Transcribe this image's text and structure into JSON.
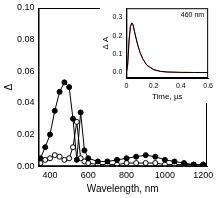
{
  "chart_data": [
    {
      "type": "line",
      "x_label": "Wavelength, nm",
      "y_label": "Δ",
      "x": [
        350,
        375,
        400,
        425,
        450,
        475,
        500,
        520,
        540,
        560,
        580,
        600,
        650,
        700,
        750,
        800,
        850,
        900,
        950,
        1000,
        1050,
        1100,
        1150,
        1200
      ],
      "series": [
        {
          "color": "#000000",
          "marker": "circle",
          "line_style": "solid",
          "values": [
            0.005,
            0.012,
            0.02,
            0.035,
            0.047,
            0.053,
            0.05,
            0.03,
            0.004,
            0.034,
            0.01,
            0.005,
            0.003,
            0.003,
            0.004,
            0.005,
            0.006,
            0.007,
            0.006,
            0.004,
            0.003,
            0.002,
            0.001,
            0.001
          ]
        },
        {
          "color": "#000000",
          "marker": "open_circle",
          "line_style": "solid",
          "values": [
            0.002,
            0.004,
            0.005,
            0.007,
            0.006,
            0.004,
            0.005,
            0.012,
            0.028,
            0.005,
            0.003,
            0.002,
            0.001,
            0.001,
            0.001,
            0.002,
            0.002,
            0.002,
            0.002,
            0.001,
            0.001,
            0.001,
            0.001,
            0.001
          ]
        }
      ],
      "xlim": [
        340,
        1220
      ],
      "xticks": [
        400,
        600,
        800,
        1000,
        1200
      ],
      "ylim": [
        0,
        0.1
      ],
      "yticks": [
        {
          "value": 0,
          "label": "0.00"
        },
        {
          "value": 0.02,
          "label": "0.02"
        },
        {
          "value": 0.04,
          "label": "0.04"
        },
        {
          "value": 0.06,
          "label": "0.06"
        },
        {
          "value": 0.08,
          "label": "0.08"
        },
        {
          "value": 0.1,
          "label": "0.10"
        }
      ],
      "grid": false
    },
    {
      "type": "line",
      "annotation": "460 nm",
      "x_label": "Time, µs",
      "y_label": "Δ A",
      "x": [
        0,
        0.01,
        0.02,
        0.03,
        0.04,
        0.05,
        0.06,
        0.08,
        0.1,
        0.12,
        0.15,
        0.2,
        0.25,
        0.3,
        0.4,
        0.5,
        0.6
      ],
      "series": [
        {
          "color": "#000000",
          "marker": "none",
          "line_style": "solid",
          "values": [
            0,
            0.04,
            0.17,
            0.25,
            0.27,
            0.26,
            0.22,
            0.16,
            0.11,
            0.075,
            0.04,
            0.015,
            0.006,
            0.003,
            0.001,
            0,
            0
          ]
        },
        {
          "color": "#d62728",
          "marker": "none",
          "line_style": "solid",
          "values": [
            0,
            0.05,
            0.18,
            0.25,
            0.27,
            0.255,
            0.225,
            0.16,
            0.11,
            0.075,
            0.04,
            0.016,
            0.006,
            0.002,
            0,
            0,
            0
          ]
        }
      ],
      "xlim": [
        0,
        0.6
      ],
      "xticks": [
        0,
        0.2,
        0.4,
        0.6
      ],
      "ylim": [
        -0.03,
        0.35
      ],
      "yticks": [
        {
          "value": 0,
          "label": "0.0"
        },
        0.1,
        0.2,
        0.3
      ],
      "grid": false
    }
  ]
}
